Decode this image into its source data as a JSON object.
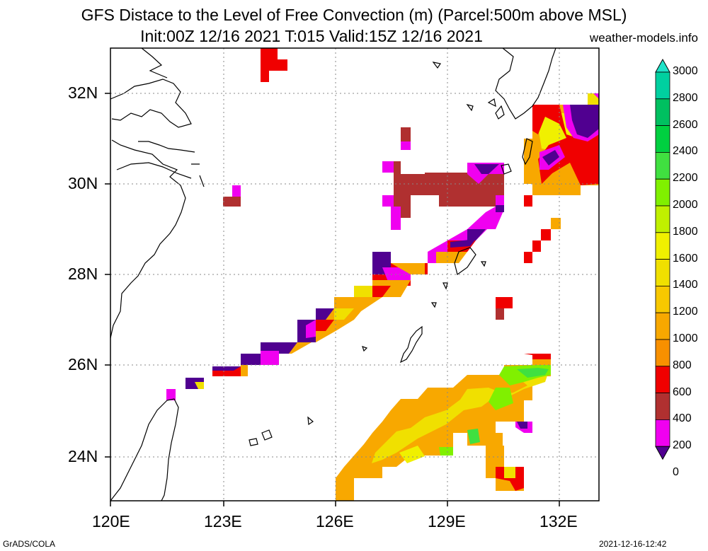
{
  "title": {
    "line1": "GFS Distace to the Level of Free Convection (m) (Parcel:500m above MSL)",
    "line2": "Init:00Z 12/16 2021 T:015 Valid:15Z 12/16 2021"
  },
  "credit": "weather-models.info",
  "footer": {
    "left": "GrADS/COLA",
    "right": "2021-12-16-12:42"
  },
  "map": {
    "lon_ticks": [
      "120E",
      "123E",
      "126E",
      "129E",
      "132E"
    ],
    "lat_ticks": [
      "32N",
      "30N",
      "28N",
      "26N",
      "24N"
    ]
  },
  "colorbar": {
    "labels": [
      "3000",
      "2800",
      "2600",
      "2400",
      "2200",
      "2000",
      "1800",
      "1600",
      "1400",
      "1200",
      "1000",
      "800",
      "600",
      "400",
      "200",
      "0"
    ],
    "colors": [
      "#1ee3c8",
      "#00d0a0",
      "#00c060",
      "#00d040",
      "#40e040",
      "#80f000",
      "#c0f000",
      "#f0f000",
      "#f0e000",
      "#f8c800",
      "#f8a800",
      "#f89000",
      "#f00000",
      "#b03030",
      "#f000f0",
      "#500090"
    ]
  }
}
